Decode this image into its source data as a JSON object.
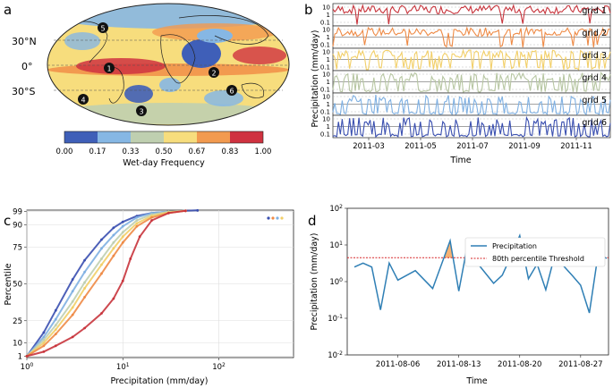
{
  "panels": {
    "a": {
      "label": "a",
      "lat_labels": [
        "30°N",
        "0°",
        "30°S"
      ],
      "markers": [
        "1",
        "2",
        "3",
        "4",
        "5",
        "6"
      ],
      "colorbar": {
        "ticks": [
          "0.00",
          "0.17",
          "0.33",
          "0.50",
          "0.67",
          "0.83",
          "1.00"
        ],
        "colors": [
          "#3f5fb8",
          "#86b7e4",
          "#bfcfb0",
          "#f7dd7d",
          "#f29a4f",
          "#cf3240"
        ],
        "label": "Wet-day Frequency"
      }
    },
    "b": {
      "label": "b",
      "grids": [
        {
          "name": "grid 1",
          "color": "#c8343c"
        },
        {
          "name": "grid 2",
          "color": "#ee8a45"
        },
        {
          "name": "grid 3",
          "color": "#f2cf68"
        },
        {
          "name": "grid 4",
          "color": "#b7c6a2"
        },
        {
          "name": "grid 5",
          "color": "#7fb0e2"
        },
        {
          "name": "grid 6",
          "color": "#3a4fb0"
        }
      ],
      "ytick_labels": [
        "10",
        "1",
        "0.1"
      ],
      "x_ticks": [
        "2011-03",
        "2011-05",
        "2011-07",
        "2011-09",
        "2011-11"
      ],
      "ylabel": "Precipitation (mm/day)",
      "xlabel": "Time"
    },
    "c": {
      "label": "c",
      "ylabel": "Percentile",
      "xlabel": "Precipitation (mm/day)"
    },
    "d": {
      "label": "d",
      "ylabel": "Precipitation (mm/day)",
      "xlabel": "Time",
      "legend": [
        "Precipitation",
        "80th percentile Threshold"
      ]
    }
  },
  "chart_data": [
    {
      "type": "line",
      "panel": "c",
      "x_scale": "log",
      "xlim": [
        1,
        600
      ],
      "ylim": [
        0,
        100
      ],
      "y_ticks": [
        1,
        10,
        25,
        50,
        75,
        90,
        99
      ],
      "x_tick_labels": [
        "10^0",
        "10^1",
        "10^2"
      ],
      "series": [
        {
          "name": "grid 6",
          "color": "#3a4fb0",
          "x": [
            1,
            1.5,
            2,
            3,
            4,
            6,
            8,
            10,
            14,
            20,
            30,
            45,
            60
          ],
          "y": [
            1,
            17,
            32,
            53,
            66,
            80,
            88,
            92,
            96,
            98,
            99,
            99.5,
            99.8
          ]
        },
        {
          "name": "grid 5",
          "color": "#7fb0e2",
          "x": [
            1,
            1.5,
            2,
            3,
            4,
            6,
            8,
            10,
            14,
            20,
            30,
            45
          ],
          "y": [
            1,
            14,
            26,
            45,
            58,
            74,
            83,
            89,
            95,
            98,
            99,
            99.5
          ]
        },
        {
          "name": "grid 4",
          "color": "#bfcfb0",
          "x": [
            1,
            1.5,
            2,
            3,
            4,
            6,
            8,
            10,
            14,
            20,
            30,
            45
          ],
          "y": [
            1,
            12,
            22,
            38,
            51,
            67,
            78,
            85,
            93,
            97,
            99,
            99.5
          ]
        },
        {
          "name": "grid 3",
          "color": "#f2cf68",
          "x": [
            1,
            1.5,
            2,
            3,
            4,
            6,
            8,
            10,
            14,
            20,
            30,
            45
          ],
          "y": [
            1,
            10,
            19,
            34,
            47,
            63,
            74,
            82,
            91,
            96,
            98.5,
            99.5
          ]
        },
        {
          "name": "grid 2",
          "color": "#ee8a45",
          "x": [
            1,
            1.5,
            2,
            3,
            4,
            6,
            8,
            10,
            14,
            20,
            30,
            45
          ],
          "y": [
            1,
            8,
            16,
            29,
            41,
            57,
            69,
            78,
            89,
            95,
            98,
            99.5
          ]
        },
        {
          "name": "grid 1",
          "color": "#c8343c",
          "x": [
            1,
            1.5,
            2,
            3,
            4,
            6,
            8,
            10,
            12,
            15,
            20,
            30,
            45
          ],
          "y": [
            1,
            4,
            8,
            14,
            20,
            30,
            40,
            52,
            67,
            82,
            93,
            98,
            99.5
          ]
        }
      ],
      "legend_dots": [
        "#3a4fb0",
        "#ee8a45",
        "#7fb0e2",
        "#f2cf68"
      ]
    },
    {
      "type": "line",
      "panel": "d",
      "y_scale": "log",
      "ylim": [
        0.01,
        100
      ],
      "y_tick_labels": [
        "10^-2",
        "10^-1",
        "10^0",
        "10^1",
        "10^2"
      ],
      "x_ticks": [
        "2011-08-06",
        "2011-08-13",
        "2011-08-20",
        "2011-08-27"
      ],
      "threshold": 4.5,
      "series": [
        {
          "name": "Precipitation",
          "color": "#2f7fb5",
          "x": [
            "2011-08-01",
            "2011-08-02",
            "2011-08-03",
            "2011-08-04",
            "2011-08-05",
            "2011-08-06",
            "2011-08-08",
            "2011-08-10",
            "2011-08-12",
            "2011-08-13",
            "2011-08-14",
            "2011-08-15",
            "2011-08-17",
            "2011-08-18",
            "2011-08-19",
            "2011-08-20",
            "2011-08-21",
            "2011-08-22",
            "2011-08-23",
            "2011-08-24",
            "2011-08-26",
            "2011-08-27",
            "2011-08-28",
            "2011-08-29",
            "2011-08-30"
          ],
          "y": [
            2.5,
            3.2,
            2.5,
            0.17,
            3.2,
            1.1,
            2.0,
            0.65,
            13.0,
            0.55,
            10.0,
            3.5,
            0.9,
            1.5,
            5.0,
            18.0,
            1.2,
            3.0,
            0.6,
            5.0,
            1.5,
            0.8,
            0.14,
            5.5,
            4.3
          ]
        }
      ]
    }
  ]
}
